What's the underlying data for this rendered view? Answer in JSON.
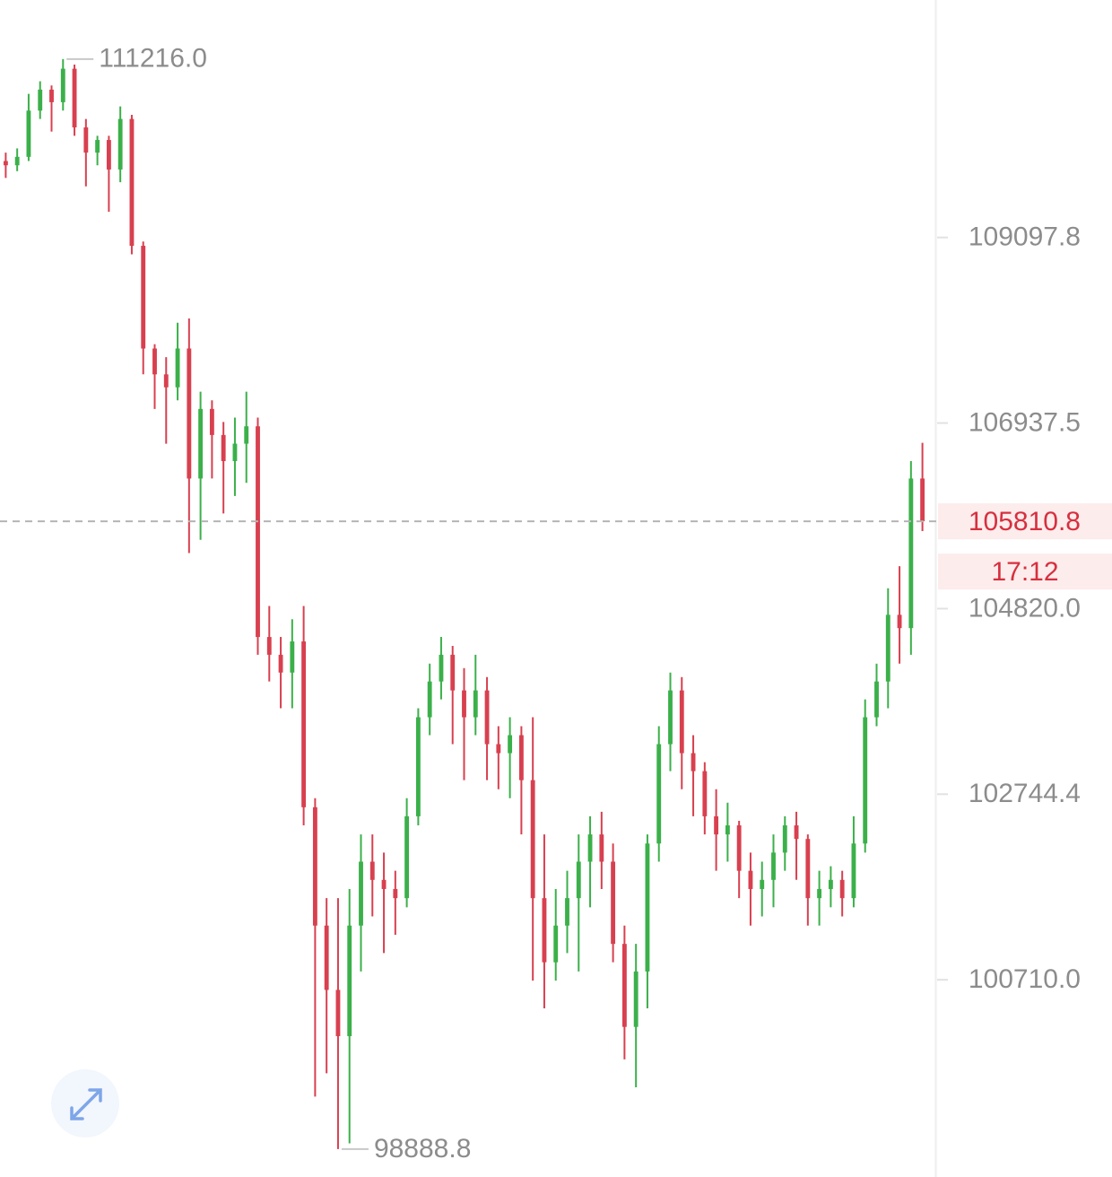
{
  "chart_data": {
    "type": "candlestick",
    "log_y": true,
    "up_color": "#3bb04a",
    "down_color": "#d8404f",
    "ylim": [
      98611,
      111926
    ],
    "yticks": [
      109097.8,
      106937.5,
      {
        "value": 104820,
        "label": "104820.0"
      },
      102744.4,
      {
        "value": 100710,
        "label": "100710.0"
      }
    ],
    "open": [
      110000,
      109950,
      110050,
      110600,
      110850,
      110700,
      111100,
      110400,
      110100,
      110250,
      109900,
      110500,
      109000,
      107800,
      107500,
      107350,
      107800,
      106300,
      107100,
      106800,
      106500,
      106700,
      106900,
      104500,
      104300,
      104100,
      104450,
      102600,
      101300,
      100600,
      100100,
      101300,
      102000,
      101800,
      101700,
      101600,
      102500,
      103600,
      104000,
      104300,
      103900,
      103600,
      103900,
      103300,
      103200,
      103400,
      102900,
      101600,
      100900,
      101300,
      101600,
      102000,
      102300,
      102000,
      101100,
      100200,
      100800,
      102200,
      103300,
      103900,
      103200,
      103000,
      102500,
      102300,
      102400,
      101900,
      101700,
      101800,
      102100,
      102400,
      102250,
      101600,
      101700,
      101800,
      101600,
      102200,
      103600,
      104000,
      104750,
      104600,
      106300
    ],
    "high": [
      110100,
      110150,
      110800,
      110950,
      110900,
      111216,
      111150,
      110500,
      110300,
      110300,
      110650,
      110550,
      109050,
      107850,
      107700,
      108100,
      108150,
      107300,
      107200,
      106950,
      107000,
      107300,
      107000,
      104850,
      104500,
      104700,
      104850,
      102700,
      101600,
      101600,
      101700,
      102300,
      102300,
      102100,
      101900,
      102700,
      103700,
      104200,
      104500,
      104400,
      104150,
      104300,
      104050,
      103500,
      103600,
      103500,
      103600,
      102300,
      101700,
      101900,
      102300,
      102500,
      102550,
      102200,
      101300,
      101100,
      102300,
      103500,
      104100,
      104050,
      103400,
      103100,
      102800,
      102650,
      102450,
      102100,
      102000,
      102300,
      102500,
      102550,
      102300,
      101900,
      101950,
      101900,
      102500,
      103800,
      104200,
      105050,
      105300,
      106500,
      106710
    ],
    "low": [
      109800,
      109880,
      110000,
      110500,
      110350,
      110600,
      110300,
      109700,
      109950,
      109400,
      109750,
      108900,
      107500,
      107100,
      106700,
      107200,
      105450,
      105600,
      106300,
      105900,
      106100,
      106250,
      104300,
      104000,
      103700,
      103700,
      102400,
      99450,
      99700,
      98888.8,
      98950,
      100800,
      101400,
      101000,
      101200,
      101500,
      102400,
      103400,
      103800,
      103300,
      102900,
      103400,
      102900,
      102800,
      102700,
      102300,
      100700,
      100400,
      100700,
      101000,
      100800,
      101500,
      101700,
      100900,
      99850,
      99550,
      100400,
      102000,
      103000,
      102800,
      102500,
      102300,
      101900,
      102000,
      101600,
      101300,
      101400,
      101500,
      101900,
      101800,
      101300,
      101300,
      101500,
      101400,
      101500,
      102100,
      103500,
      103700,
      104200,
      104300,
      105700
    ],
    "close": [
      109950,
      110050,
      110600,
      110850,
      110700,
      111100,
      110400,
      110100,
      110250,
      109900,
      110500,
      109000,
      107800,
      107500,
      107350,
      107800,
      106300,
      107100,
      106800,
      106500,
      106700,
      106900,
      104500,
      104300,
      104100,
      104450,
      102600,
      101300,
      100600,
      100100,
      101300,
      102000,
      101800,
      101700,
      101600,
      102500,
      103600,
      104000,
      104300,
      103900,
      103600,
      103900,
      103300,
      103200,
      103400,
      102900,
      101600,
      100900,
      101300,
      101600,
      102000,
      102300,
      102000,
      101100,
      100200,
      100800,
      102200,
      103300,
      103900,
      103200,
      103000,
      102500,
      102300,
      102400,
      101900,
      101700,
      101800,
      102100,
      102400,
      102250,
      101600,
      101700,
      101800,
      101600,
      102200,
      103600,
      104000,
      104750,
      104600,
      106300,
      105810.8
    ],
    "annotations": [
      {
        "value": 111216,
        "label": "111216.0"
      },
      {
        "value": 98888.8,
        "label": "98888.8"
      }
    ],
    "last_price": 105810.8,
    "countdown": "17:12"
  }
}
